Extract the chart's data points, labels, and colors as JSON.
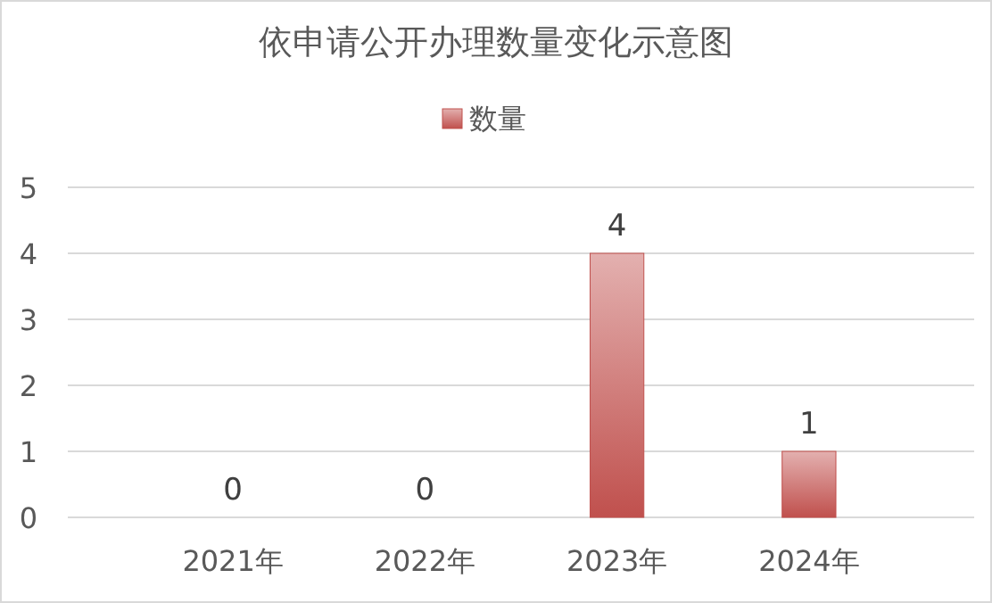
{
  "chart_data": {
    "type": "bar",
    "title": "依申请公开办理数量变化示意图",
    "categories": [
      "2021年",
      "2022年",
      "2023年",
      "2024年"
    ],
    "series": [
      {
        "name": "数量",
        "color": "#c0504d",
        "values": [
          0,
          0,
          4,
          1
        ]
      }
    ],
    "ylim": [
      0,
      5
    ],
    "yticks": [
      0,
      1,
      2,
      3,
      4,
      5
    ],
    "grid": "y",
    "legend": "top",
    "data_labels": true
  }
}
